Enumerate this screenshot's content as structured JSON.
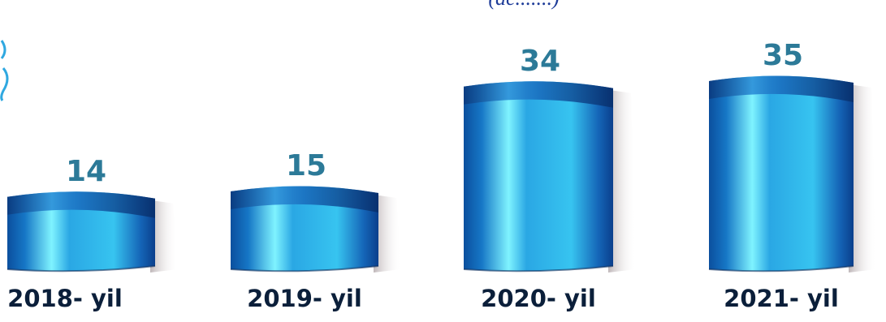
{
  "colors": {
    "bar_dark": "#0a3f8c",
    "bar_mid": "#1a7fd0",
    "bar_light": "#5fe0ff",
    "value_label": "#2c7a98",
    "category_label": "#0b1f3a",
    "subtitle": "#1f3d99",
    "side_decoration": "#2fa8e0"
  },
  "chart_data": {
    "type": "bar",
    "title": "",
    "subtitle": "(aс.......)",
    "xlabel": "",
    "ylabel": "",
    "ylim": [
      0,
      40
    ],
    "grid": false,
    "legend": "none",
    "categories": [
      "2018- yil",
      "2019- yil",
      "2020- yil",
      "2021- yil"
    ],
    "values": [
      14,
      15,
      34,
      35
    ],
    "value_labels": [
      "14",
      "15",
      "34",
      "35"
    ]
  }
}
